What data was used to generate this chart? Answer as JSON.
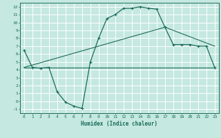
{
  "xlabel": "Humidex (Indice chaleur)",
  "xlim": [
    -0.5,
    23.5
  ],
  "ylim": [
    -1.5,
    12.5
  ],
  "xticks": [
    0,
    1,
    2,
    3,
    4,
    5,
    6,
    7,
    8,
    9,
    10,
    11,
    12,
    13,
    14,
    15,
    16,
    17,
    18,
    19,
    20,
    21,
    22,
    23
  ],
  "yticks": [
    -1,
    0,
    1,
    2,
    3,
    4,
    5,
    6,
    7,
    8,
    9,
    10,
    11,
    12
  ],
  "bg_color": "#c5e8e0",
  "line_color": "#1a6b5a",
  "grid_color": "#ffffff",
  "curve1_x": [
    0,
    1,
    2,
    3,
    4,
    5,
    6,
    7,
    8,
    9,
    10,
    11,
    12,
    13,
    14,
    15,
    16,
    17,
    18,
    19,
    20,
    21,
    22,
    23
  ],
  "curve1_y": [
    6.5,
    4.3,
    4.2,
    4.3,
    1.2,
    -0.1,
    -0.6,
    -0.9,
    5.0,
    8.0,
    10.5,
    11.0,
    11.8,
    11.8,
    12.0,
    11.8,
    11.7,
    9.4,
    7.2,
    7.2,
    7.2,
    7.0,
    7.0,
    4.3
  ],
  "curve2_x": [
    0,
    1,
    23
  ],
  "curve2_y": [
    4.3,
    4.3,
    4.3
  ],
  "curve3_x": [
    0,
    17,
    23
  ],
  "curve3_y": [
    4.3,
    9.4,
    7.0
  ]
}
